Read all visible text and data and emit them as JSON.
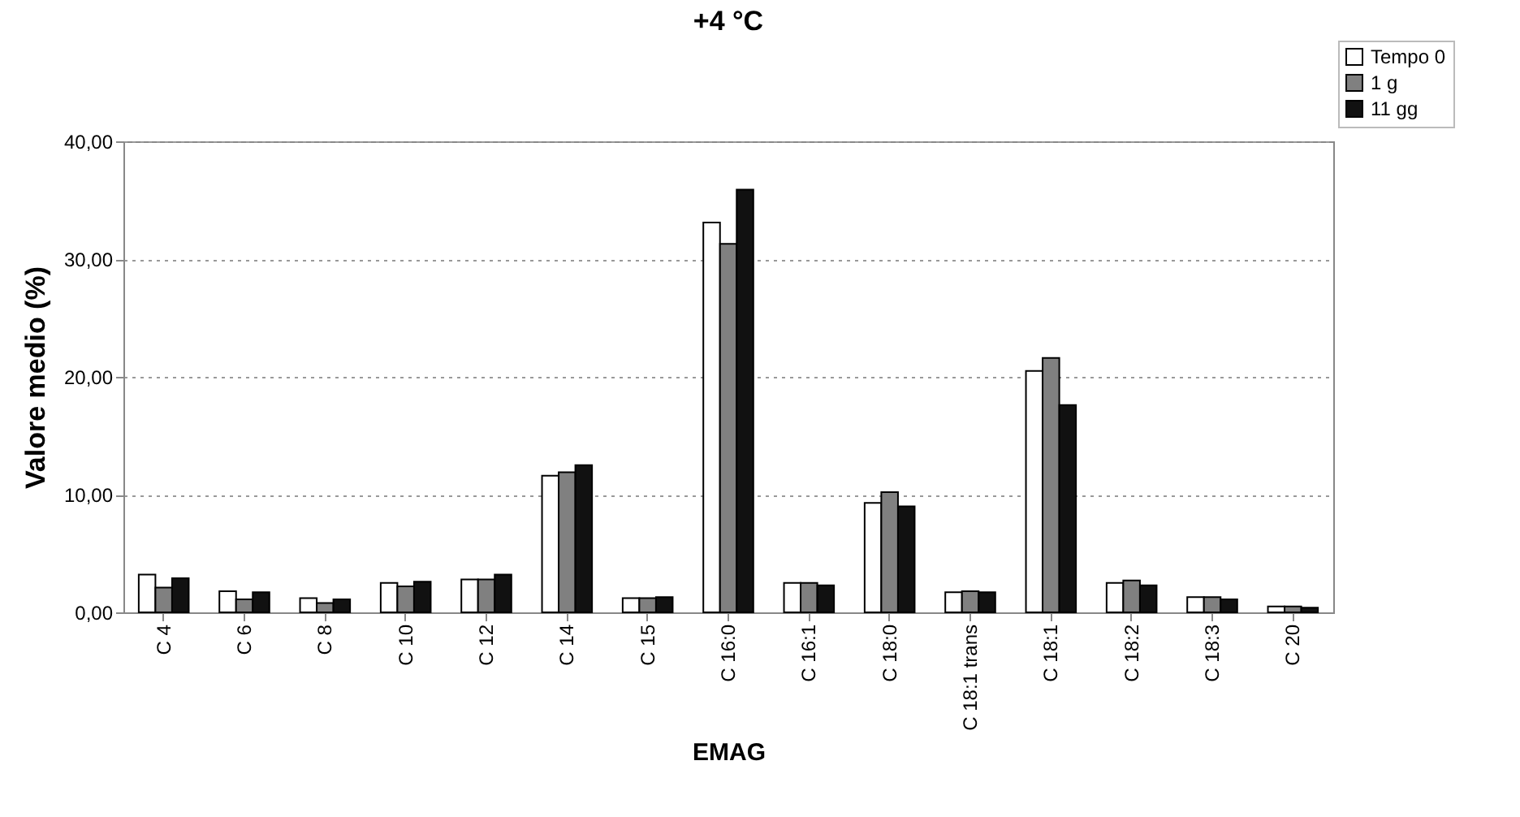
{
  "chart_data": {
    "type": "bar",
    "title": "+4 °C",
    "xlabel": "EMAG",
    "ylabel": "Valore medio (%)",
    "categories": [
      "C 4",
      "C 6",
      "C 8",
      "C 10",
      "C 12",
      "C 14",
      "C 15",
      "C 16:0",
      "C 16:1",
      "C 18:0",
      "C 18:1 trans",
      "C 18:1",
      "C 18:2",
      "C 18:3",
      "C 20"
    ],
    "series": [
      {
        "name": "Tempo 0",
        "color": "#ffffff",
        "values": [
          3.2,
          1.8,
          1.2,
          2.5,
          2.8,
          11.6,
          1.2,
          33.1,
          2.5,
          9.3,
          1.7,
          20.5,
          2.5,
          1.3,
          0.5
        ]
      },
      {
        "name": "1 g",
        "color": "#808080",
        "values": [
          2.1,
          1.1,
          0.8,
          2.2,
          2.8,
          11.9,
          1.2,
          31.3,
          2.5,
          10.2,
          1.8,
          21.6,
          2.7,
          1.3,
          0.5
        ]
      },
      {
        "name": "11 gg",
        "color": "#111111",
        "values": [
          2.9,
          1.7,
          1.1,
          2.6,
          3.2,
          12.5,
          1.3,
          35.9,
          2.3,
          9.0,
          1.7,
          17.6,
          2.3,
          1.1,
          0.4
        ]
      }
    ],
    "ylim": [
      0,
      40
    ],
    "yticks": [
      {
        "value": 0,
        "label": "0,00"
      },
      {
        "value": 10,
        "label": "10,00"
      },
      {
        "value": 20,
        "label": "20,00"
      },
      {
        "value": 30,
        "label": "30,00"
      },
      {
        "value": 40,
        "label": "40,00"
      }
    ],
    "grid": "y",
    "legend": "top right"
  }
}
